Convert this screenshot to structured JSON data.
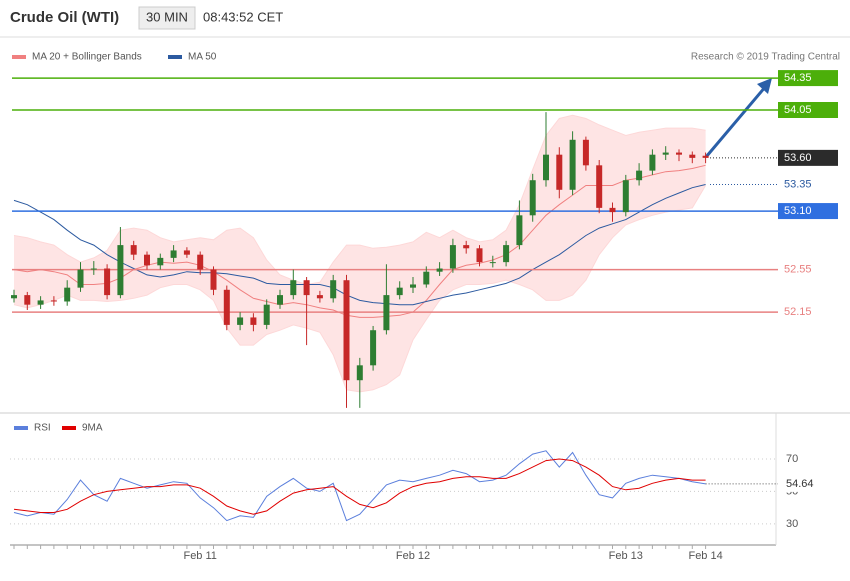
{
  "header": {
    "title": "Crude Oil (WTI)",
    "interval": "30 MIN",
    "time": "08:43:52 CET",
    "source": "Research © 2019 Trading Central"
  },
  "chart_data": [
    {
      "type": "candlestick",
      "up_color": "#2e7d32",
      "down_color": "#c62828",
      "ylim": [
        51.23,
        54.52
      ],
      "open": [
        52.28,
        52.31,
        52.22,
        52.26,
        52.25,
        52.38,
        52.55,
        52.56,
        52.31,
        52.78,
        52.69,
        52.59,
        52.66,
        52.73,
        52.69,
        52.55,
        52.36,
        52.03,
        52.1,
        52.03,
        52.22,
        52.31,
        52.45,
        52.31,
        52.28,
        52.45,
        51.51,
        51.65,
        51.98,
        52.31,
        52.38,
        52.41,
        52.53,
        52.56,
        52.78,
        52.75,
        52.62,
        52.62,
        52.78,
        53.06,
        53.39,
        53.63,
        53.3,
        53.77,
        53.53,
        53.13,
        53.09,
        53.39,
        53.48,
        53.63,
        53.65,
        53.63,
        53.62
      ],
      "high": [
        52.36,
        52.34,
        52.3,
        52.3,
        52.45,
        52.62,
        52.63,
        52.6,
        52.95,
        52.82,
        52.72,
        52.7,
        52.78,
        52.76,
        52.72,
        52.58,
        52.4,
        52.15,
        52.14,
        52.27,
        52.36,
        52.55,
        52.48,
        52.35,
        52.5,
        52.5,
        51.72,
        52.02,
        52.6,
        52.44,
        52.48,
        52.58,
        52.62,
        52.84,
        52.82,
        52.78,
        52.68,
        52.82,
        53.2,
        53.45,
        54.03,
        53.7,
        53.85,
        53.8,
        53.58,
        53.18,
        53.44,
        53.55,
        53.68,
        53.71,
        53.68,
        53.66,
        53.65
      ],
      "low": [
        52.24,
        52.17,
        52.18,
        52.21,
        52.21,
        52.34,
        52.5,
        52.27,
        52.28,
        52.64,
        52.55,
        52.55,
        52.62,
        52.66,
        52.5,
        52.31,
        51.98,
        51.98,
        51.97,
        51.99,
        52.18,
        52.27,
        51.84,
        52.24,
        52.24,
        51.25,
        51.25,
        51.6,
        51.94,
        52.27,
        52.33,
        52.38,
        52.49,
        52.52,
        52.7,
        52.58,
        52.57,
        52.58,
        52.74,
        53.0,
        53.33,
        53.22,
        53.25,
        53.48,
        53.08,
        53.0,
        53.05,
        53.34,
        53.44,
        53.58,
        53.57,
        53.55,
        53.55
      ],
      "close": [
        52.31,
        52.22,
        52.26,
        52.25,
        52.38,
        52.55,
        52.56,
        52.31,
        52.78,
        52.69,
        52.59,
        52.66,
        52.73,
        52.69,
        52.55,
        52.36,
        52.03,
        52.1,
        52.03,
        52.22,
        52.31,
        52.45,
        52.31,
        52.28,
        52.45,
        51.51,
        51.65,
        51.98,
        52.31,
        52.38,
        52.41,
        52.53,
        52.56,
        52.78,
        52.75,
        52.62,
        52.62,
        52.78,
        53.06,
        53.39,
        53.63,
        53.3,
        53.77,
        53.53,
        53.13,
        53.09,
        53.39,
        53.48,
        53.63,
        53.65,
        53.63,
        53.6,
        53.6
      ],
      "series": [
        {
          "name": "MA 20 + Bollinger Bands",
          "color": "#f08080",
          "band_color": "#fdd8d8",
          "values": [
            52.55,
            52.53,
            52.55,
            52.53,
            52.5,
            52.41,
            52.41,
            52.42,
            52.47,
            52.55,
            52.59,
            52.62,
            52.61,
            52.62,
            52.59,
            52.53,
            52.45,
            52.36,
            52.28,
            52.25,
            52.22,
            52.24,
            52.22,
            52.19,
            52.17,
            52.12,
            52.1,
            52.1,
            52.11,
            52.12,
            52.15,
            52.26,
            52.41,
            52.55,
            52.59,
            52.61,
            52.64,
            52.69,
            52.78,
            52.92,
            53.06,
            53.16,
            53.25,
            53.34,
            53.34,
            53.34,
            53.39,
            53.41,
            53.44,
            53.47,
            53.48,
            53.5,
            53.53
          ],
          "upper": [
            52.87,
            52.85,
            52.81,
            52.78,
            52.69,
            52.62,
            52.66,
            52.73,
            52.92,
            52.94,
            52.92,
            52.85,
            52.81,
            52.83,
            52.85,
            52.83,
            52.92,
            52.94,
            52.85,
            52.64,
            52.5,
            52.45,
            52.41,
            52.43,
            52.62,
            52.78,
            52.78,
            52.75,
            52.76,
            52.78,
            52.81,
            52.9,
            52.85,
            52.92,
            52.85,
            52.81,
            52.83,
            52.92,
            53.16,
            53.49,
            53.81,
            53.97,
            54.0,
            53.97,
            53.91,
            53.86,
            53.81,
            53.84,
            53.86,
            53.88,
            53.88,
            53.88,
            53.86
          ],
          "lower": [
            52.22,
            52.19,
            52.22,
            52.26,
            52.31,
            52.26,
            52.26,
            52.25,
            52.26,
            52.28,
            52.31,
            52.38,
            52.41,
            52.41,
            52.36,
            52.26,
            52.0,
            51.84,
            51.84,
            51.94,
            51.98,
            52.03,
            52.0,
            51.96,
            51.75,
            51.42,
            51.4,
            51.42,
            51.47,
            51.56,
            51.89,
            52.08,
            52.26,
            52.36,
            52.41,
            52.41,
            52.42,
            52.45,
            52.41,
            52.36,
            52.26,
            52.26,
            52.31,
            52.45,
            52.69,
            52.85,
            52.97,
            53.02,
            53.06,
            53.09,
            53.11,
            53.13,
            53.34
          ]
        },
        {
          "name": "MA 50",
          "color": "#2c5aa0",
          "values": [
            53.2,
            53.16,
            53.09,
            53.02,
            52.92,
            52.83,
            52.78,
            52.69,
            52.62,
            52.56,
            52.5,
            52.48,
            52.5,
            52.53,
            52.52,
            52.52,
            52.51,
            52.49,
            52.47,
            52.42,
            52.41,
            52.41,
            52.41,
            52.41,
            52.38,
            52.31,
            52.26,
            52.24,
            52.23,
            52.22,
            52.22,
            52.25,
            52.28,
            52.31,
            52.33,
            52.36,
            52.39,
            52.42,
            52.47,
            52.55,
            52.62,
            52.69,
            52.78,
            52.87,
            52.94,
            52.98,
            53.02,
            53.09,
            53.16,
            53.22,
            53.27,
            53.32,
            53.35
          ]
        }
      ],
      "levels": [
        {
          "value": 54.35,
          "label": "54.35",
          "color": "#4caf0a",
          "line": "solid",
          "box": true
        },
        {
          "value": 54.05,
          "label": "54.05",
          "color": "#4caf0a",
          "line": "solid",
          "box": true
        },
        {
          "value": 53.6,
          "label": "53.60",
          "color": "#2b2b2b",
          "line": "dotted",
          "box": true
        },
        {
          "value": 53.35,
          "label": "53.35",
          "color": "#2c5aa0",
          "line": "dotted",
          "box": false
        },
        {
          "value": 53.1,
          "label": "53.10",
          "color": "#2f6fe0",
          "line": "solid",
          "box": true
        },
        {
          "value": 52.55,
          "label": "52.55",
          "color": "#e88080",
          "line": "solid",
          "box": false
        },
        {
          "value": 52.15,
          "label": "52.15",
          "color": "#e88080",
          "line": "solid",
          "box": false
        }
      ]
    },
    {
      "type": "line",
      "ylim": [
        17,
        94
      ],
      "yticks": [
        30,
        50,
        70
      ],
      "grid": true,
      "categories": [
        null,
        null,
        null,
        null,
        null,
        null,
        null,
        null,
        null,
        null,
        null,
        null,
        null,
        null,
        "Feb 11",
        null,
        null,
        null,
        null,
        null,
        null,
        null,
        null,
        null,
        null,
        null,
        null,
        null,
        null,
        null,
        "Feb 12",
        null,
        null,
        null,
        null,
        null,
        null,
        null,
        null,
        null,
        null,
        null,
        null,
        null,
        null,
        null,
        "Feb 13",
        null,
        null,
        null,
        null,
        null,
        "Feb 14"
      ],
      "series": [
        {
          "name": "RSI",
          "color": "#5b7fdc",
          "values": [
            37,
            35,
            37,
            36,
            45,
            57,
            48,
            44,
            58,
            55,
            52,
            54,
            56,
            55,
            46,
            40,
            32,
            35,
            34,
            47,
            53,
            58,
            52,
            50,
            55,
            32,
            36,
            45,
            54,
            57,
            56,
            58,
            60,
            63,
            61,
            56,
            57,
            60,
            67,
            73,
            75,
            65,
            74,
            60,
            48,
            46,
            55,
            58,
            60,
            59,
            58,
            56,
            54.64
          ]
        },
        {
          "name": "9MA",
          "color": "#e00000",
          "values": [
            39,
            38,
            37,
            37,
            39,
            44,
            48,
            50,
            51,
            52,
            53,
            53,
            54,
            54,
            52,
            47,
            41,
            38,
            36,
            38,
            44,
            49,
            51,
            52,
            53,
            47,
            42,
            40,
            43,
            49,
            53,
            55,
            56,
            58,
            59,
            59,
            58,
            58,
            61,
            65,
            69,
            70,
            69,
            65,
            60,
            53,
            51,
            52,
            55,
            57,
            58,
            57,
            57
          ]
        }
      ]
    }
  ]
}
